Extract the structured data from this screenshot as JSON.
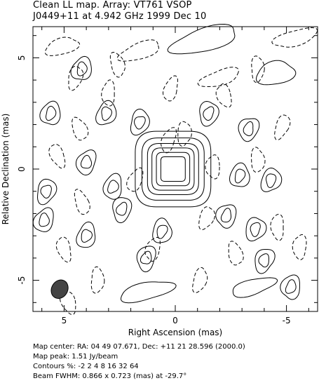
{
  "chart_data": {
    "type": "contour",
    "title": "Clean LL map.  Array:  VT761 VSOP",
    "subtitle": "J0449+11 at 4.942 GHz 1999 Dec 10",
    "xlabel": "Right Ascension  (mas)",
    "ylabel": "Relative Declination  (mas)",
    "xlim": [
      6.4,
      -6.4
    ],
    "ylim": [
      -6.4,
      6.4
    ],
    "x_ticks": [
      5,
      0,
      -5
    ],
    "y_ticks": [
      5,
      0,
      -5
    ],
    "x_tick_labels": [
      "5",
      "0",
      "-5"
    ],
    "y_tick_labels": [
      "5",
      "0",
      "-5"
    ],
    "contour_levels_percent": [
      -2,
      2,
      4,
      8,
      16,
      32,
      64
    ],
    "peak_jy_per_beam": 1.51,
    "beam": {
      "major_mas": 0.866,
      "minor_mas": 0.723,
      "pa_deg": -29.7,
      "center": [
        5.2,
        -5.4
      ]
    },
    "core": {
      "center": [
        0.1,
        0.0
      ]
    },
    "positive_blobs": [
      [
        5.6,
        2.5
      ],
      [
        3.1,
        2.5
      ],
      [
        1.6,
        2.1
      ],
      [
        -1.5,
        2.5
      ],
      [
        -3.3,
        1.8
      ],
      [
        4.0,
        0.3
      ],
      [
        2.8,
        -0.8
      ],
      [
        -2.9,
        -0.3
      ],
      [
        -4.3,
        -0.5
      ],
      [
        5.8,
        -1.0
      ],
      [
        2.4,
        -1.8
      ],
      [
        -2.3,
        -2.1
      ],
      [
        5.9,
        -2.3
      ],
      [
        4.0,
        -3.0
      ],
      [
        0.6,
        -2.8
      ],
      [
        -3.6,
        -2.7
      ],
      [
        -4.0,
        -4.1
      ],
      [
        1.3,
        -4.0
      ],
      [
        -5.2,
        -5.3
      ],
      [
        4.2,
        4.5
      ]
    ],
    "positive_elongated": [
      [
        -1.3,
        5.8,
        1.6,
        0.5
      ],
      [
        -4.5,
        4.3,
        0.9,
        0.5
      ],
      [
        1.3,
        -5.5,
        1.2,
        0.4
      ],
      [
        -3.5,
        -5.3,
        1.0,
        0.35
      ]
    ],
    "negative_blobs": [
      [
        2.6,
        4.7
      ],
      [
        -3.7,
        4.5
      ],
      [
        4.5,
        4.1
      ],
      [
        -2.2,
        3.3
      ],
      [
        3.0,
        3.4
      ],
      [
        0.2,
        3.6
      ],
      [
        4.3,
        1.8
      ],
      [
        -0.4,
        1.6
      ],
      [
        -4.8,
        1.9
      ],
      [
        5.3,
        0.6
      ],
      [
        -1.7,
        0.1
      ],
      [
        1.8,
        -0.5
      ],
      [
        4.2,
        -1.5
      ],
      [
        -3.7,
        0.4
      ],
      [
        -1.4,
        -2.2
      ],
      [
        5.0,
        -3.6
      ],
      [
        -4.6,
        -2.6
      ],
      [
        1.0,
        -3.6
      ],
      [
        -2.7,
        -3.8
      ],
      [
        3.5,
        -5.0
      ],
      [
        -1.1,
        -5.0
      ],
      [
        4.8,
        -6.0
      ],
      [
        -5.6,
        -3.5
      ],
      [
        0.3,
        1.3
      ]
    ],
    "negative_elongated": [
      [
        -5.4,
        5.9,
        1.0,
        0.35
      ],
      [
        -2.0,
        4.1,
        0.9,
        0.35
      ],
      [
        1.6,
        5.3,
        1.0,
        0.35
      ],
      [
        5.1,
        5.5,
        0.8,
        0.35
      ]
    ]
  },
  "info": {
    "line1": "Map center:  RA: 04 49 07.671,  Dec: +11 21 28.596 (2000.0)",
    "line2": "Map peak: 1.51 Jy/beam",
    "line3": "Contours %: -2 2 4 8 16 32 64",
    "line4": "Beam FWHM: 0.866 x 0.723 (mas) at -29.7°"
  }
}
